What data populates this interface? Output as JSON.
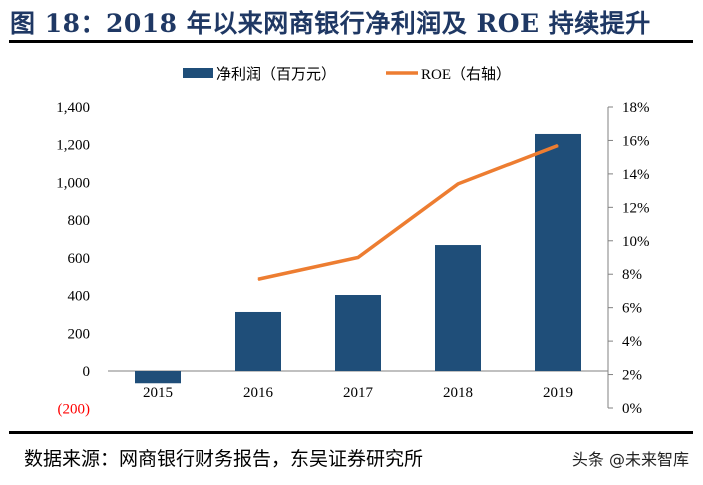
{
  "title": "图 18：2018 年以来网商银行净利润及 ROE 持续提升",
  "source": "数据来源：网商银行财务报告，东吴证券研究所",
  "watermark": "头条 @未来智库",
  "chart_data": {
    "type": "bar+line",
    "categories": [
      "2015",
      "2016",
      "2017",
      "2018",
      "2019"
    ],
    "series": [
      {
        "name": "净利润（百万元）",
        "type": "bar",
        "axis": "left",
        "color": "#1f4e79",
        "values": [
          -65,
          313,
          403,
          668,
          1257
        ]
      },
      {
        "name": "ROE（右轴）",
        "type": "line",
        "axis": "right",
        "color": "#ed7d31",
        "values": [
          null,
          7.7,
          9.0,
          13.4,
          15.7
        ]
      }
    ],
    "left_axis": {
      "ylim": [
        -200,
        1400
      ],
      "ticks": [
        "(200)",
        "0",
        "200",
        "400",
        "600",
        "800",
        "1,000",
        "1,200",
        "1,400"
      ],
      "tick_values": [
        -200,
        0,
        200,
        400,
        600,
        800,
        1000,
        1200,
        1400
      ],
      "negative_color": "#ff0000"
    },
    "right_axis": {
      "ylim": [
        0,
        18
      ],
      "ticks": [
        "0%",
        "2%",
        "4%",
        "6%",
        "8%",
        "10%",
        "12%",
        "14%",
        "16%",
        "18%"
      ],
      "tick_values": [
        0,
        2,
        4,
        6,
        8,
        10,
        12,
        14,
        16,
        18
      ]
    },
    "legend": "top",
    "grid": false
  }
}
